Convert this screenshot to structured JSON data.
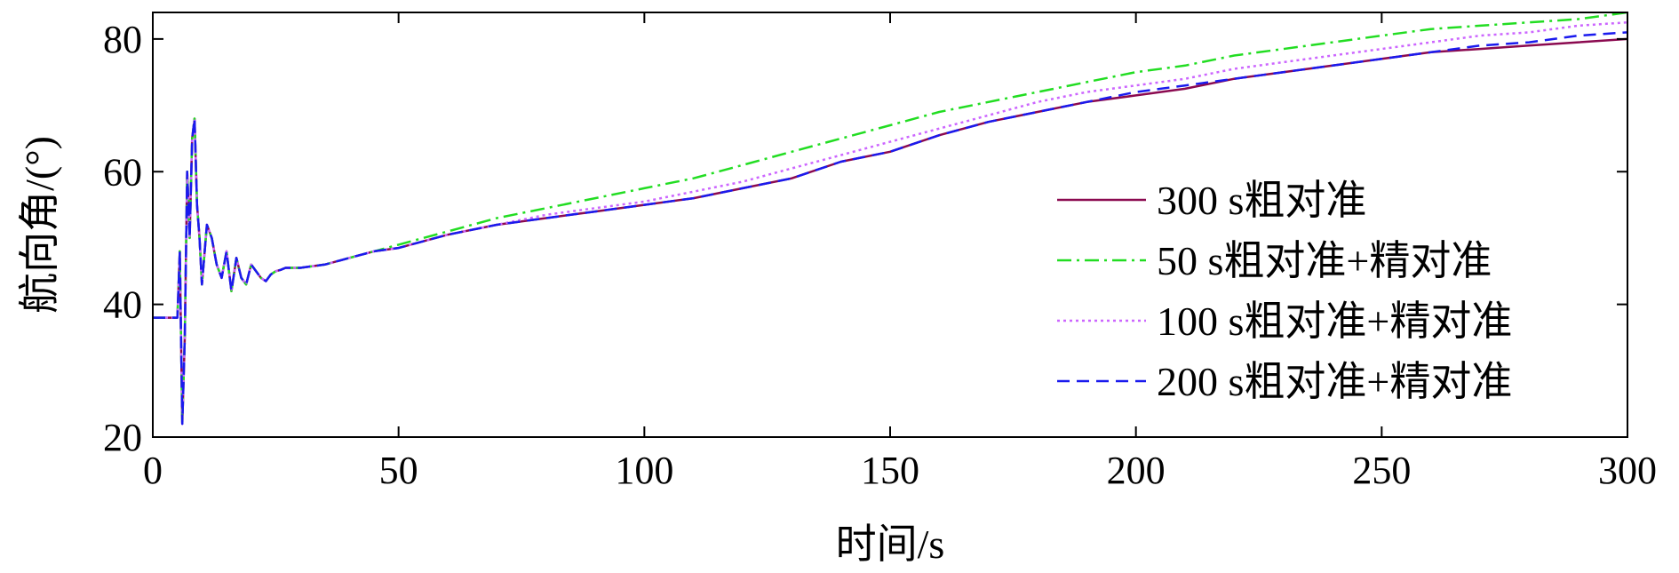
{
  "chart_data": {
    "type": "line",
    "title": "",
    "xlabel": "时间/s",
    "ylabel": "航向角/(°)",
    "xlim": [
      0,
      300
    ],
    "ylim": [
      20,
      84
    ],
    "xticks": [
      "0",
      "50",
      "100",
      "150",
      "200",
      "250",
      "300"
    ],
    "yticks": [
      "20",
      "40",
      "60",
      "80"
    ],
    "grid": false,
    "legend_position": "right",
    "series": [
      {
        "name": "300 s粗对准",
        "color": "#8b0a50",
        "dash": "solid",
        "x": [
          0,
          5,
          5.5,
          6,
          6.5,
          7,
          7.5,
          8,
          8.5,
          9,
          9.5,
          10,
          11,
          12,
          13,
          14,
          15,
          16,
          17,
          18,
          19,
          20,
          21,
          22,
          23,
          24,
          25,
          26,
          27,
          30,
          35,
          40,
          45,
          50,
          60,
          70,
          80,
          90,
          100,
          110,
          120,
          130,
          140,
          150,
          160,
          170,
          180,
          190,
          200,
          210,
          220,
          230,
          240,
          250,
          260,
          270,
          280,
          290,
          300
        ],
        "y": [
          38,
          38,
          48,
          22,
          35,
          60,
          50,
          65,
          68,
          55,
          50,
          43,
          52,
          50,
          46,
          44,
          48,
          42,
          47,
          44,
          43,
          46,
          45,
          44,
          43.5,
          44.5,
          45,
          45.2,
          45.5,
          45.5,
          46,
          47,
          48,
          48.5,
          50.5,
          52,
          53,
          54,
          55,
          56,
          57.5,
          59,
          61.5,
          63,
          65.5,
          67.5,
          69,
          70.5,
          71.5,
          72.5,
          74,
          75,
          76,
          77,
          78,
          78.5,
          79,
          79.5,
          80
        ]
      },
      {
        "name": "50 s粗对准+精对准",
        "color": "#22dd22",
        "dash": "dashdot",
        "x": [
          0,
          5,
          5.5,
          6,
          6.5,
          7,
          7.5,
          8,
          8.5,
          9,
          9.5,
          10,
          11,
          12,
          13,
          14,
          15,
          16,
          17,
          18,
          19,
          20,
          21,
          22,
          23,
          24,
          25,
          26,
          27,
          30,
          35,
          40,
          45,
          50,
          60,
          70,
          80,
          90,
          100,
          110,
          120,
          130,
          140,
          150,
          160,
          170,
          180,
          190,
          200,
          210,
          220,
          230,
          240,
          250,
          260,
          270,
          280,
          290,
          300
        ],
        "y": [
          38,
          38,
          48,
          22,
          35,
          60,
          50,
          65,
          68,
          55,
          50,
          43,
          52,
          50,
          46,
          44,
          48,
          42,
          47,
          44,
          43,
          46,
          45,
          44,
          43.5,
          44.5,
          45,
          45.2,
          45.5,
          45.5,
          46,
          47,
          48,
          49,
          51,
          53,
          54.5,
          56,
          57.5,
          59,
          61,
          63,
          65,
          67,
          69,
          70.5,
          72,
          73.5,
          75,
          76,
          77.5,
          78.5,
          79.5,
          80.5,
          81.5,
          82,
          82.5,
          83,
          84
        ]
      },
      {
        "name": "100 s粗对准+精对准",
        "color": "#cc66ff",
        "dash": "dotted",
        "x": [
          0,
          5,
          5.5,
          6,
          6.5,
          7,
          7.5,
          8,
          8.5,
          9,
          9.5,
          10,
          11,
          12,
          13,
          14,
          15,
          16,
          17,
          18,
          19,
          20,
          21,
          22,
          23,
          24,
          25,
          26,
          27,
          30,
          35,
          40,
          45,
          50,
          60,
          70,
          80,
          90,
          100,
          110,
          120,
          130,
          140,
          150,
          160,
          170,
          180,
          190,
          200,
          210,
          220,
          230,
          240,
          250,
          260,
          270,
          280,
          290,
          300
        ],
        "y": [
          38,
          38,
          48,
          22,
          35,
          60,
          50,
          65,
          68,
          55,
          50,
          43,
          52,
          50,
          46,
          44,
          48,
          42,
          47,
          44,
          43,
          46,
          45,
          44,
          43.5,
          44.5,
          45,
          45.2,
          45.5,
          45.5,
          46,
          47,
          48,
          48.5,
          50.5,
          52,
          53.5,
          54.5,
          55.5,
          57,
          58.5,
          60.5,
          62.5,
          64.5,
          66.5,
          68.5,
          70.5,
          72,
          73,
          74,
          75.5,
          76.5,
          77.5,
          78.5,
          79.5,
          80.5,
          81,
          82,
          82.5
        ]
      },
      {
        "name": "200 s粗对准+精对准",
        "color": "#1a1aee",
        "dash": "dashed",
        "x": [
          0,
          5,
          5.5,
          6,
          6.5,
          7,
          7.5,
          8,
          8.5,
          9,
          9.5,
          10,
          11,
          12,
          13,
          14,
          15,
          16,
          17,
          18,
          19,
          20,
          21,
          22,
          23,
          24,
          25,
          26,
          27,
          30,
          35,
          40,
          45,
          50,
          60,
          70,
          80,
          90,
          100,
          110,
          120,
          130,
          140,
          150,
          160,
          170,
          180,
          190,
          200,
          210,
          220,
          230,
          240,
          250,
          260,
          270,
          280,
          290,
          300
        ],
        "y": [
          38,
          38,
          48,
          22,
          35,
          60,
          50,
          65,
          68,
          55,
          50,
          43,
          52,
          50,
          46,
          44,
          48,
          42,
          47,
          44,
          43,
          46,
          45,
          44,
          43.5,
          44.5,
          45,
          45.2,
          45.5,
          45.5,
          46,
          47,
          48,
          48.5,
          50.5,
          52,
          53,
          54,
          55,
          56,
          57.5,
          59,
          61.5,
          63,
          65.5,
          67.5,
          69,
          70.5,
          72,
          73,
          74,
          75,
          76,
          77,
          78,
          79,
          79.5,
          80.5,
          81
        ]
      }
    ]
  }
}
